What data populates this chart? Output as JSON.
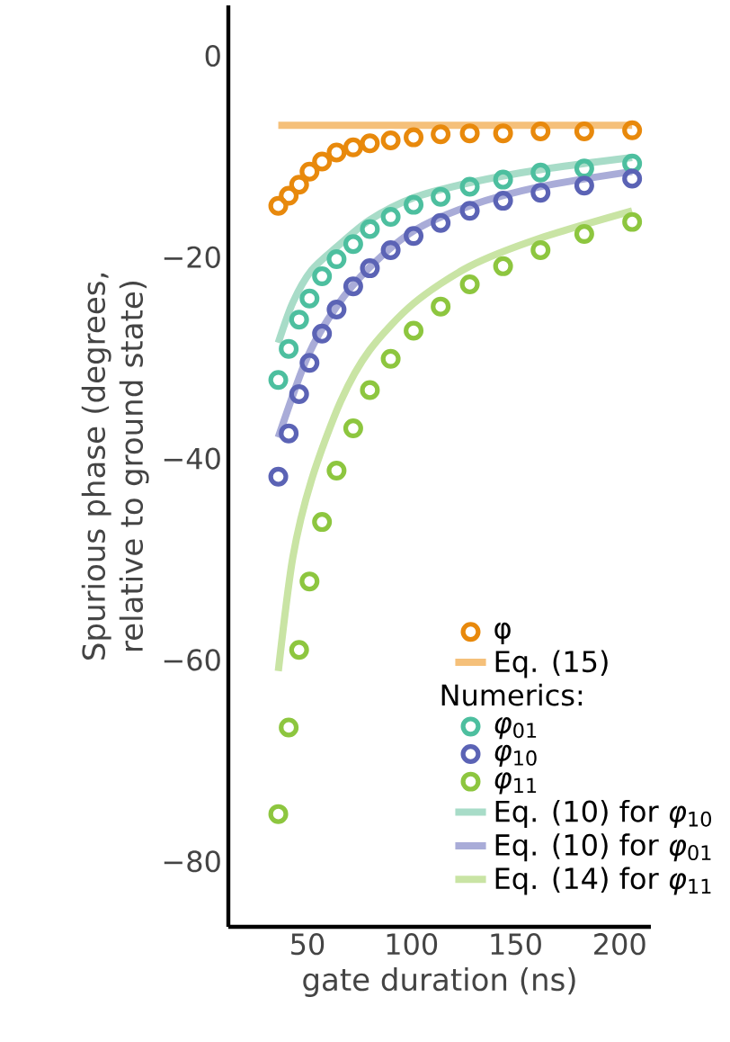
{
  "chart_data": {
    "type": "scatter",
    "xlabel": "gate duration (ns)",
    "ylabel": "Spurious phase (degrees, relative to ground state)",
    "annotations": [
      "Numerics:"
    ],
    "xlim": [
      12,
      215
    ],
    "xticks": [
      50,
      100,
      150,
      200
    ],
    "ylim": [
      -86.5,
      5
    ],
    "yticks": [
      {
        "value": -80,
        "label": "−80"
      },
      {
        "value": -60,
        "label": "−60"
      },
      {
        "value": -40,
        "label": "−40"
      },
      {
        "value": -20,
        "label": "−20"
      },
      0
    ],
    "grid": false,
    "legend": "bottom right",
    "marker": "circle",
    "series": [
      {
        "name": "φ",
        "color": "#e8890c",
        "x": [
          36,
          41,
          46,
          51,
          57,
          64,
          72,
          80,
          90,
          101,
          114,
          128,
          144,
          162,
          183,
          206
        ],
        "values": [
          -14.9,
          -13.9,
          -12.8,
          -11.5,
          -10.5,
          -9.6,
          -9.1,
          -8.7,
          -8.4,
          -8.1,
          -7.8,
          -7.7,
          -7.7,
          -7.5,
          -7.5,
          -7.4
        ]
      },
      {
        "name": "Eq. (15)",
        "type": "line",
        "marker": "none",
        "color": "#f5c07a",
        "x": [
          36,
          206
        ],
        "values": [
          -6.9,
          -6.9
        ]
      },
      {
        "name": "*φ*$_{01}$",
        "color": "#4dbf9f",
        "x": [
          36,
          41,
          46,
          51,
          57,
          64,
          72,
          80,
          90,
          101,
          114,
          128,
          144,
          162,
          183,
          206
        ],
        "values": [
          -32.2,
          -29.1,
          -26.2,
          -24.1,
          -21.9,
          -20.2,
          -18.7,
          -17.2,
          -16.0,
          -14.8,
          -14.0,
          -13.0,
          -12.3,
          -11.6,
          -11.2,
          -10.7
        ]
      },
      {
        "name": "*φ*$_{10}$",
        "color": "#5b63b5",
        "x": [
          36,
          41,
          46,
          51,
          57,
          64,
          72,
          80,
          90,
          101,
          114,
          128,
          144,
          162,
          183,
          206
        ],
        "values": [
          -41.8,
          -37.5,
          -33.6,
          -30.5,
          -27.6,
          -25.2,
          -22.9,
          -21.1,
          -19.3,
          -17.9,
          -16.6,
          -15.4,
          -14.4,
          -13.6,
          -12.9,
          -12.2
        ]
      },
      {
        "name": "*φ*$_{11}$",
        "color": "#8dc63f",
        "x": [
          36,
          41,
          46,
          51,
          57,
          64,
          72,
          80,
          90,
          101,
          114,
          128,
          144,
          162,
          183,
          206
        ],
        "values": [
          -75.3,
          -66.7,
          -59.0,
          -52.2,
          -46.3,
          -41.2,
          -37.0,
          -33.2,
          -30.1,
          -27.3,
          -24.9,
          -22.7,
          -20.9,
          -19.3,
          -17.7,
          -16.5
        ]
      },
      {
        "name": "Eq. (10) for *φ*$_{10}$",
        "type": "line",
        "marker": "none",
        "color": "#a8dcc8",
        "x": [
          36,
          43,
          52,
          64,
          80,
          101,
          128,
          162,
          206
        ],
        "values": [
          -28.5,
          -24.5,
          -21.3,
          -19.0,
          -16.3,
          -14.1,
          -12.6,
          -11.3,
          -10.1
        ]
      },
      {
        "name": "Eq. (10) for *φ*$_{01}$",
        "type": "line",
        "marker": "none",
        "color": "#a9acd8",
        "x": [
          36,
          50,
          64,
          80,
          101,
          128,
          162,
          206
        ],
        "values": [
          -37.9,
          -29.9,
          -24.9,
          -21.0,
          -17.4,
          -14.9,
          -13.0,
          -11.5
        ]
      },
      {
        "name": "Eq. (14) for *φ*$_{11}$",
        "type": "line",
        "marker": "none",
        "color": "#c9e4a4",
        "x": [
          36,
          43,
          52,
          66,
          80,
          101,
          128,
          162,
          206
        ],
        "values": [
          -61.1,
          -49.8,
          -42.1,
          -34.3,
          -29.2,
          -24.6,
          -20.9,
          -18.1,
          -15.4
        ]
      }
    ]
  }
}
